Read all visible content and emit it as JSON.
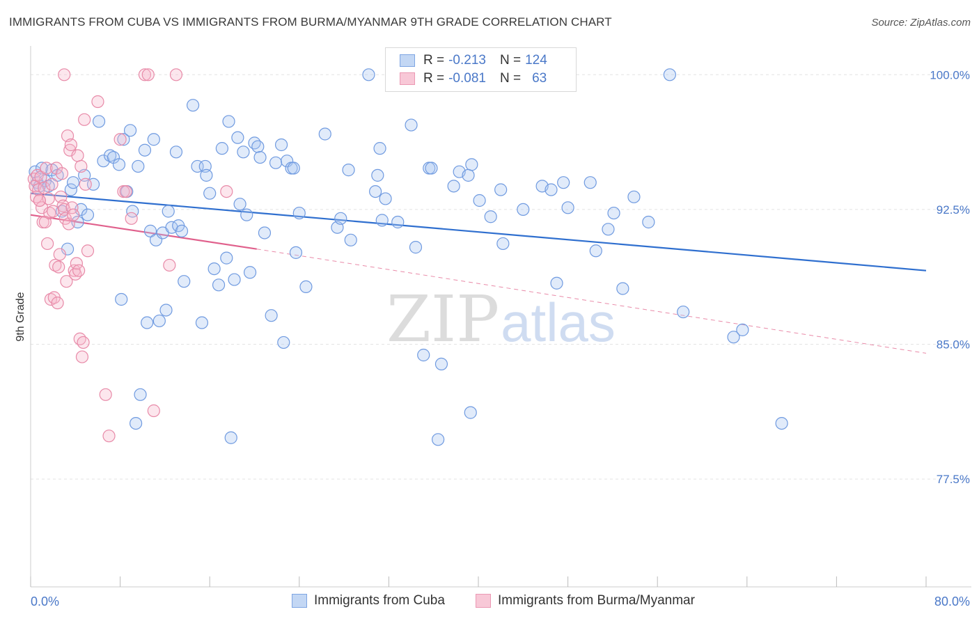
{
  "title": "IMMIGRANTS FROM CUBA VS IMMIGRANTS FROM BURMA/MYANMAR 9TH GRADE CORRELATION CHART",
  "source": "Source: ZipAtlas.com",
  "watermark": {
    "zip": "ZIP",
    "atlas": "atlas"
  },
  "legend": {
    "r_label": "R =",
    "n_label": "N =",
    "cuba": {
      "r": "-0.213",
      "n": "124",
      "color": "#a9c7f0",
      "edge": "#6f9ae0"
    },
    "burma": {
      "r": "-0.081",
      "n": "63",
      "color": "#f6b8cc",
      "edge": "#e88aa8"
    }
  },
  "chart_data": {
    "type": "scatter",
    "title": "IMMIGRANTS FROM CUBA VS IMMIGRANTS FROM BURMA/MYANMAR 9TH GRADE CORRELATION CHART",
    "xlabel": "",
    "ylabel": "9th Grade",
    "xlim": [
      0,
      80
    ],
    "ylim": [
      71.5,
      101.6
    ],
    "x_tick_labels": [
      "0.0%",
      "80.0%"
    ],
    "y_ticks": [
      77.5,
      85.0,
      92.5,
      100.0
    ],
    "y_tick_labels": [
      "77.5%",
      "85.0%",
      "92.5%",
      "100.0%"
    ],
    "grid": true,
    "series": [
      {
        "name": "Immigrants from Cuba",
        "color": "#6f9ae0",
        "fill": "rgba(169,199,240,0.35)",
        "trend": {
          "x": [
            0,
            80
          ],
          "y": [
            93.4,
            89.1
          ],
          "color": "#2f6fcf"
        },
        "points": [
          [
            0.4,
            94.6
          ],
          [
            0.6,
            94.0
          ],
          [
            0.8,
            93.8
          ],
          [
            1.0,
            94.8
          ],
          [
            1.3,
            94.1
          ],
          [
            1.6,
            93.8
          ],
          [
            1.9,
            94.7
          ],
          [
            2.4,
            94.4
          ],
          [
            2.8,
            92.4
          ],
          [
            3.3,
            90.3
          ],
          [
            3.6,
            93.6
          ],
          [
            3.8,
            94.0
          ],
          [
            4.2,
            91.8
          ],
          [
            4.5,
            92.5
          ],
          [
            4.8,
            94.4
          ],
          [
            5.1,
            92.2
          ],
          [
            5.6,
            93.9
          ],
          [
            6.1,
            97.4
          ],
          [
            6.5,
            95.2
          ],
          [
            7.1,
            95.5
          ],
          [
            7.4,
            95.4
          ],
          [
            7.9,
            95.0
          ],
          [
            8.1,
            87.5
          ],
          [
            8.3,
            96.4
          ],
          [
            8.6,
            93.5
          ],
          [
            8.9,
            96.9
          ],
          [
            9.1,
            92.4
          ],
          [
            9.4,
            80.6
          ],
          [
            9.6,
            94.9
          ],
          [
            9.8,
            82.2
          ],
          [
            10.2,
            95.8
          ],
          [
            10.4,
            86.2
          ],
          [
            10.7,
            91.3
          ],
          [
            11.0,
            96.4
          ],
          [
            11.2,
            90.8
          ],
          [
            11.5,
            86.3
          ],
          [
            11.8,
            91.2
          ],
          [
            12.1,
            86.9
          ],
          [
            12.3,
            92.4
          ],
          [
            12.6,
            91.5
          ],
          [
            13.0,
            95.7
          ],
          [
            13.2,
            91.6
          ],
          [
            13.5,
            91.3
          ],
          [
            13.7,
            88.5
          ],
          [
            14.5,
            98.3
          ],
          [
            14.9,
            94.9
          ],
          [
            15.3,
            86.2
          ],
          [
            15.6,
            94.9
          ],
          [
            15.7,
            94.4
          ],
          [
            16.0,
            93.4
          ],
          [
            16.4,
            89.2
          ],
          [
            16.8,
            88.3
          ],
          [
            17.1,
            95.9
          ],
          [
            17.5,
            89.8
          ],
          [
            17.7,
            97.4
          ],
          [
            17.9,
            79.8
          ],
          [
            18.2,
            88.6
          ],
          [
            18.5,
            96.5
          ],
          [
            18.7,
            92.8
          ],
          [
            19.0,
            95.7
          ],
          [
            19.3,
            92.2
          ],
          [
            19.6,
            89.0
          ],
          [
            20.0,
            96.2
          ],
          [
            20.3,
            96.0
          ],
          [
            20.5,
            95.4
          ],
          [
            20.9,
            91.2
          ],
          [
            21.5,
            86.6
          ],
          [
            21.9,
            95.1
          ],
          [
            22.4,
            96.1
          ],
          [
            22.6,
            85.1
          ],
          [
            22.9,
            95.2
          ],
          [
            23.3,
            94.8
          ],
          [
            23.5,
            94.8
          ],
          [
            23.7,
            90.1
          ],
          [
            24.0,
            92.3
          ],
          [
            24.6,
            88.2
          ],
          [
            26.3,
            96.7
          ],
          [
            27.4,
            91.5
          ],
          [
            27.7,
            92.0
          ],
          [
            28.4,
            94.7
          ],
          [
            28.6,
            90.8
          ],
          [
            30.2,
            100.0
          ],
          [
            30.8,
            93.5
          ],
          [
            31.0,
            94.4
          ],
          [
            31.2,
            95.9
          ],
          [
            31.4,
            91.9
          ],
          [
            31.7,
            93.1
          ],
          [
            32.8,
            91.8
          ],
          [
            34.0,
            97.2
          ],
          [
            34.4,
            90.4
          ],
          [
            35.1,
            84.4
          ],
          [
            35.6,
            94.8
          ],
          [
            35.8,
            94.8
          ],
          [
            36.4,
            79.7
          ],
          [
            36.7,
            83.9
          ],
          [
            37.8,
            93.8
          ],
          [
            38.3,
            94.6
          ],
          [
            39.1,
            94.4
          ],
          [
            39.3,
            81.2
          ],
          [
            39.4,
            95.0
          ],
          [
            40.1,
            93.0
          ],
          [
            41.1,
            92.1
          ],
          [
            42.0,
            93.6
          ],
          [
            42.2,
            90.6
          ],
          [
            44.0,
            92.5
          ],
          [
            45.7,
            93.8
          ],
          [
            46.5,
            93.6
          ],
          [
            47.0,
            88.4
          ],
          [
            47.6,
            94.0
          ],
          [
            48.0,
            92.6
          ],
          [
            50.0,
            94.0
          ],
          [
            50.5,
            90.2
          ],
          [
            51.6,
            91.4
          ],
          [
            52.1,
            92.3
          ],
          [
            52.9,
            88.1
          ],
          [
            53.9,
            93.2
          ],
          [
            55.2,
            91.8
          ],
          [
            57.1,
            100.0
          ],
          [
            58.3,
            86.8
          ],
          [
            62.8,
            85.4
          ],
          [
            63.6,
            85.8
          ],
          [
            67.1,
            80.6
          ]
        ]
      },
      {
        "name": "Immigrants from Burma/Myanmar",
        "color": "#e88aa8",
        "fill": "rgba(246,184,204,0.35)",
        "trend": {
          "x": [
            0,
            20.2
          ],
          "y": [
            92.2,
            90.3
          ],
          "color": "#e0608c"
        },
        "trend_extension": {
          "x": [
            20.2,
            80
          ],
          "y": [
            90.3,
            84.5
          ],
          "color": "#e98aa8"
        },
        "points": [
          [
            0.3,
            94.2
          ],
          [
            0.4,
            93.8
          ],
          [
            0.5,
            93.2
          ],
          [
            0.6,
            94.4
          ],
          [
            0.7,
            93.6
          ],
          [
            0.8,
            93.0
          ],
          [
            0.9,
            94.3
          ],
          [
            1.0,
            92.6
          ],
          [
            1.1,
            91.8
          ],
          [
            1.2,
            93.7
          ],
          [
            1.3,
            91.8
          ],
          [
            1.4,
            94.8
          ],
          [
            1.5,
            90.6
          ],
          [
            1.6,
            93.1
          ],
          [
            1.7,
            92.3
          ],
          [
            1.8,
            87.5
          ],
          [
            1.9,
            93.9
          ],
          [
            2.0,
            92.4
          ],
          [
            2.1,
            87.6
          ],
          [
            2.2,
            89.4
          ],
          [
            2.3,
            94.8
          ],
          [
            2.4,
            87.3
          ],
          [
            2.5,
            89.3
          ],
          [
            2.6,
            90.0
          ],
          [
            2.7,
            93.2
          ],
          [
            2.8,
            94.5
          ],
          [
            2.9,
            92.7
          ],
          [
            3.0,
            92.5
          ],
          [
            3.1,
            92.0
          ],
          [
            3.2,
            88.5
          ],
          [
            3.3,
            96.6
          ],
          [
            3.4,
            91.7
          ],
          [
            3.5,
            95.8
          ],
          [
            3.6,
            96.1
          ],
          [
            3.7,
            92.6
          ],
          [
            3.8,
            92.2
          ],
          [
            3.9,
            89.1
          ],
          [
            4.0,
            88.9
          ],
          [
            4.1,
            89.5
          ],
          [
            4.2,
            95.5
          ],
          [
            4.3,
            89.1
          ],
          [
            4.4,
            85.3
          ],
          [
            4.5,
            94.9
          ],
          [
            4.6,
            84.3
          ],
          [
            4.7,
            85.1
          ],
          [
            4.8,
            97.5
          ],
          [
            4.9,
            93.9
          ],
          [
            5.1,
            90.2
          ],
          [
            6.0,
            98.5
          ],
          [
            6.7,
            82.2
          ],
          [
            7.0,
            79.9
          ],
          [
            8.0,
            96.4
          ],
          [
            8.3,
            93.5
          ],
          [
            8.5,
            93.5
          ],
          [
            9.0,
            92.0
          ],
          [
            10.2,
            100.0
          ],
          [
            10.5,
            100.0
          ],
          [
            11.0,
            81.3
          ],
          [
            12.4,
            89.4
          ],
          [
            13.0,
            100.0
          ],
          [
            17.5,
            93.5
          ],
          [
            3.0,
            100.0
          ],
          [
            0.8,
            93.0
          ]
        ]
      }
    ]
  },
  "bottom_legend": {
    "cuba": "Immigrants from Cuba",
    "burma": "Immigrants from Burma/Myanmar"
  }
}
